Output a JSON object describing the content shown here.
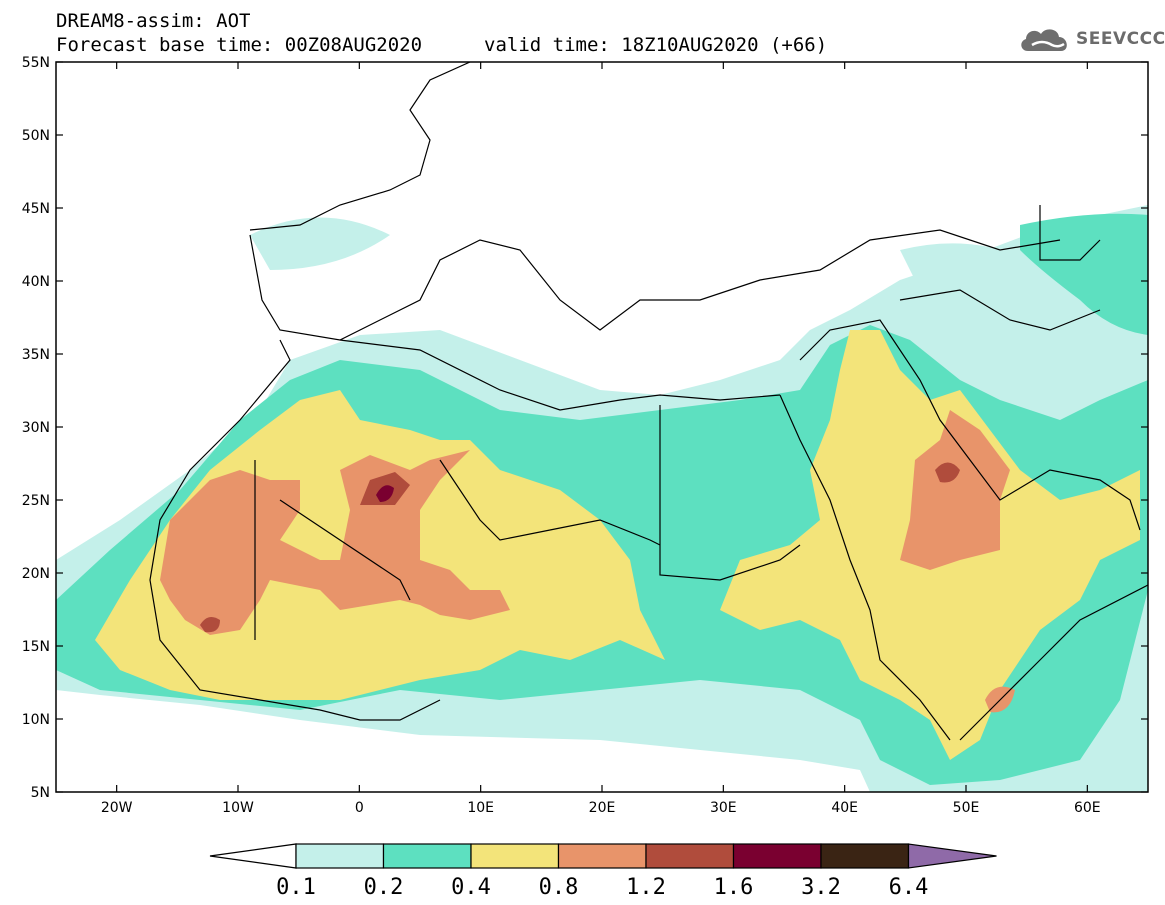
{
  "header": {
    "line1": "DREAM8-assim: AOT",
    "line2": "Forecast base time: 00Z08AUG2020",
    "line3": "valid time: 18Z10AUG2020 (+66)"
  },
  "logo": {
    "text": "SEEVCCC",
    "icon": "cloud-icon"
  },
  "map": {
    "lat_labels": [
      "55N",
      "50N",
      "45N",
      "40N",
      "35N",
      "30N",
      "25N",
      "20N",
      "15N",
      "10N",
      "5N"
    ],
    "lon_labels": [
      "20W",
      "10W",
      "0",
      "10E",
      "20E",
      "30E",
      "40E",
      "50E",
      "60E"
    ],
    "extent": {
      "lon": [
        -25,
        65
      ],
      "lat": [
        5,
        55
      ]
    }
  },
  "colorbar": {
    "labels": [
      "0.1",
      "0.2",
      "0.4",
      "0.8",
      "1.2",
      "1.6",
      "3.2",
      "6.4"
    ],
    "colors": [
      "#c4f0ea",
      "#5de0c0",
      "#f3e47a",
      "#e8946a",
      "#b04c3c",
      "#7a0030",
      "#3a2414",
      "#8f6aa8"
    ]
  }
}
